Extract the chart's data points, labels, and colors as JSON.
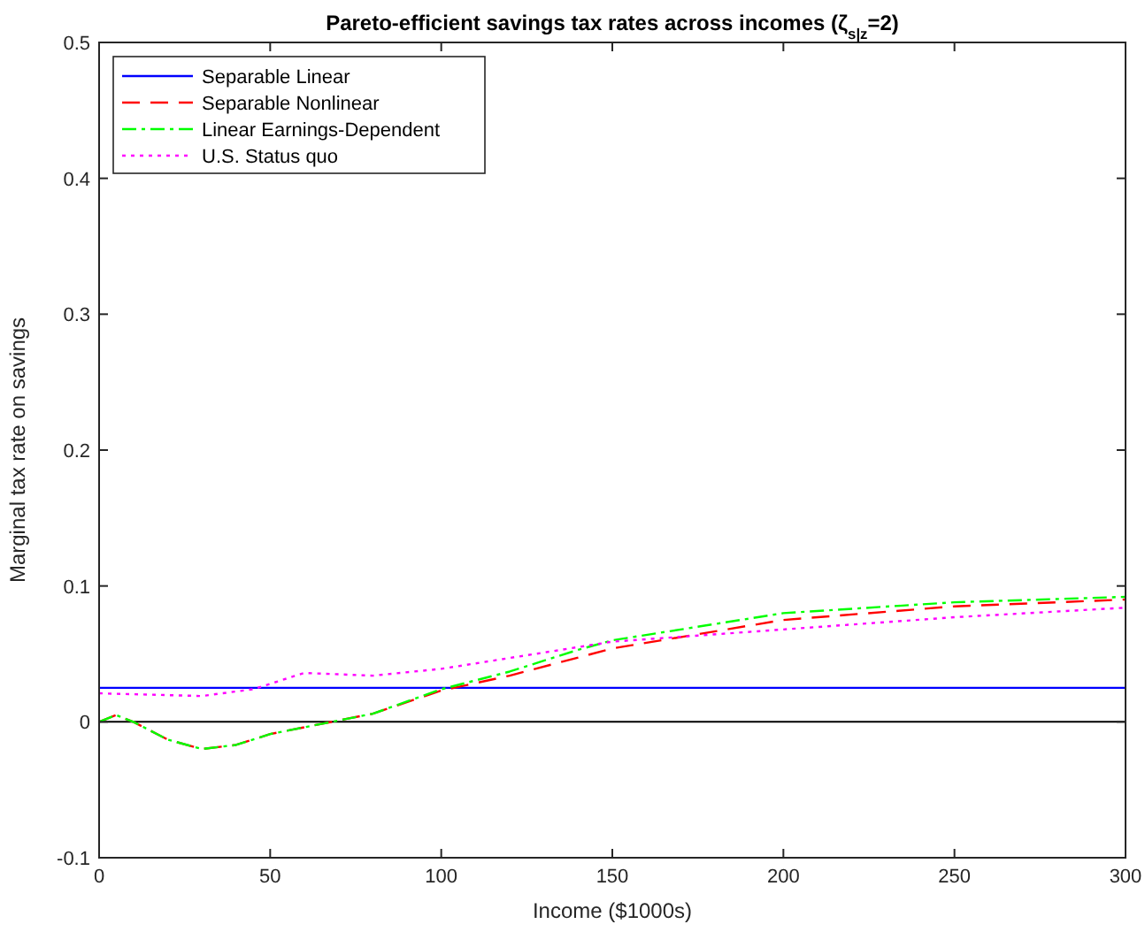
{
  "chart_data": {
    "type": "line",
    "title": "Pareto-efficient savings tax rates across incomes (ζ$_{s|z}$=2)",
    "xlabel": "Income ($1000s)",
    "ylabel": "Marginal tax rate on savings",
    "xlim": [
      0,
      300
    ],
    "xticks": [
      0,
      50,
      100,
      150,
      200,
      250,
      300
    ],
    "ylim": [
      -0.1,
      0.5
    ],
    "yticks": [
      -0.1,
      0,
      0.1,
      0.2,
      0.3,
      0.4,
      0.5
    ],
    "legend": "top left",
    "grid": false,
    "ref_lines": [
      {
        "axis": "y",
        "value": 0,
        "color": "#000000"
      }
    ],
    "series": [
      {
        "name": "Separable Linear",
        "color": "#0000ff",
        "line_style": "solid",
        "x": [
          0,
          300
        ],
        "values": [
          0.025,
          0.025
        ]
      },
      {
        "name": "Separable Nonlinear",
        "color": "#ff0000",
        "line_style": "dashed",
        "x": [
          0,
          5,
          10,
          20,
          30,
          40,
          50,
          60,
          80,
          100,
          120,
          150,
          200,
          250,
          300
        ],
        "values": [
          0,
          0.005,
          0,
          -0.013,
          -0.02,
          -0.017,
          -0.009,
          -0.004,
          0.006,
          0.023,
          0.034,
          0.054,
          0.075,
          0.085,
          0.09
        ]
      },
      {
        "name": "Linear Earnings-Dependent",
        "color": "#00ff00",
        "line_style": "dashdot",
        "x": [
          0,
          5,
          10,
          20,
          30,
          40,
          50,
          60,
          80,
          100,
          120,
          140,
          150,
          200,
          250,
          300
        ],
        "values": [
          0,
          0.005,
          0,
          -0.013,
          -0.02,
          -0.017,
          -0.009,
          -0.004,
          0.006,
          0.024,
          0.037,
          0.053,
          0.06,
          0.08,
          0.088,
          0.092
        ]
      },
      {
        "name": "U.S. Status quo",
        "color": "#ff00ff",
        "line_style": "dotted",
        "x": [
          0,
          30,
          45,
          60,
          80,
          100,
          120,
          150,
          200,
          250,
          300
        ],
        "values": [
          0.021,
          0.019,
          0.024,
          0.036,
          0.034,
          0.039,
          0.047,
          0.059,
          0.068,
          0.077,
          0.084
        ]
      }
    ]
  }
}
